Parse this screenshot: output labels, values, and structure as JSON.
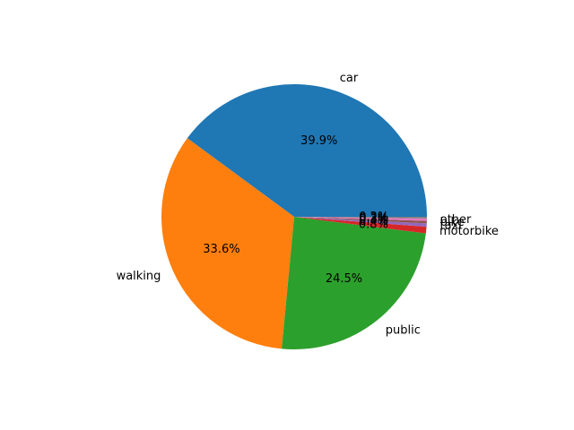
{
  "chart_data": {
    "type": "pie",
    "title": "",
    "slices": [
      {
        "label": "car",
        "value": 39.9,
        "pct_text": "39.9%",
        "color": "#1f77b4"
      },
      {
        "label": "walking",
        "value": 33.6,
        "pct_text": "33.6%",
        "color": "#ff7f0e"
      },
      {
        "label": "public",
        "value": 24.5,
        "pct_text": "24.5%",
        "color": "#2ca02c"
      },
      {
        "label": "motorbike",
        "value": 0.8,
        "pct_text": "0.8%",
        "color": "#d62728"
      },
      {
        "label": "taxi",
        "value": 0.4,
        "pct_text": "0.4%",
        "color": "#9467bd"
      },
      {
        "label": "bike",
        "value": 0.3,
        "pct_text": "0.3%",
        "color": "#8c564b"
      },
      {
        "label": "other",
        "value": 0.3,
        "pct_text": "0.3%",
        "color": "#e377c2"
      },
      {
        "label": "",
        "value": 0.2,
        "pct_text": "0.2%",
        "color": "#7f7f7f"
      }
    ],
    "start_angle_deg": 0,
    "direction": "counterclockwise",
    "legend": "none"
  }
}
